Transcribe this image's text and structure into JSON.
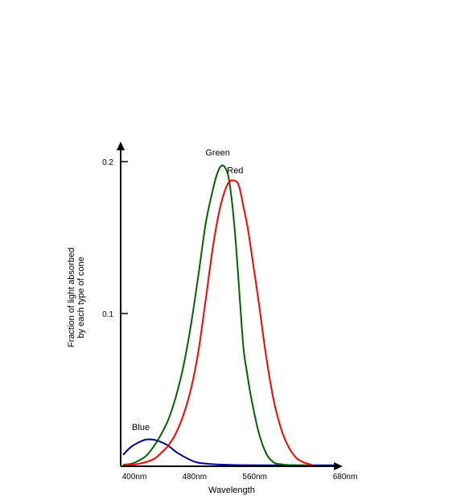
{
  "chart_data": {
    "type": "line",
    "title": "",
    "xlabel": "Wavelength",
    "ylabel_lines": [
      "Fraction of light absorbed",
      "by each type of cone"
    ],
    "xlim": [
      400,
      680
    ],
    "ylim": [
      0,
      0.2
    ],
    "x_ticks": [
      {
        "value": 400,
        "label": "400nm"
      },
      {
        "value": 480,
        "label": "480nm"
      },
      {
        "value": 560,
        "label": "560nm"
      },
      {
        "value": 680,
        "label": "680nm"
      }
    ],
    "y_ticks": [
      {
        "value": 0.1,
        "label": "0.1"
      },
      {
        "value": 0.2,
        "label": "0.2"
      }
    ],
    "grid": false,
    "legend": "none",
    "series": [
      {
        "name": "Blue",
        "color": "#000099",
        "x": [
          400,
          410,
          420,
          430,
          440,
          450,
          460,
          470,
          480,
          490,
          500,
          520,
          540,
          560,
          600,
          640,
          680
        ],
        "y": [
          0.007,
          0.012,
          0.015,
          0.017,
          0.017,
          0.0155,
          0.013,
          0.009,
          0.006,
          0.0035,
          0.0018,
          0.0008,
          0.0004,
          0.0002,
          0.0001,
          0.0001,
          0.0001
        ]
      },
      {
        "name": "Green",
        "color": "#006400",
        "x": [
          400,
          410,
          420,
          430,
          440,
          450,
          460,
          470,
          480,
          490,
          500,
          510,
          520,
          525,
          530,
          535,
          540,
          545,
          550,
          555,
          560,
          565,
          570,
          580,
          590,
          600,
          610,
          620,
          630,
          640,
          650
        ],
        "y": [
          0.0005,
          0.001,
          0.003,
          0.006,
          0.012,
          0.02,
          0.03,
          0.045,
          0.065,
          0.092,
          0.125,
          0.16,
          0.183,
          0.192,
          0.197,
          0.1965,
          0.19,
          0.172,
          0.145,
          0.11,
          0.077,
          0.06,
          0.045,
          0.022,
          0.008,
          0.002,
          0.0008,
          0.0003,
          0.0002,
          0.0001,
          0.0001
        ]
      },
      {
        "name": "Red",
        "color": "#ff0000",
        "x": [
          400,
          420,
          440,
          450,
          460,
          470,
          480,
          490,
          500,
          510,
          520,
          530,
          540,
          550,
          555,
          560,
          565,
          570,
          580,
          590,
          600,
          610,
          620,
          630,
          640,
          650
        ],
        "y": [
          0.0002,
          0.001,
          0.004,
          0.008,
          0.013,
          0.021,
          0.033,
          0.05,
          0.075,
          0.11,
          0.146,
          0.172,
          0.186,
          0.187,
          0.182,
          0.17,
          0.158,
          0.142,
          0.108,
          0.072,
          0.043,
          0.024,
          0.012,
          0.005,
          0.002,
          0.0005
        ]
      }
    ]
  }
}
